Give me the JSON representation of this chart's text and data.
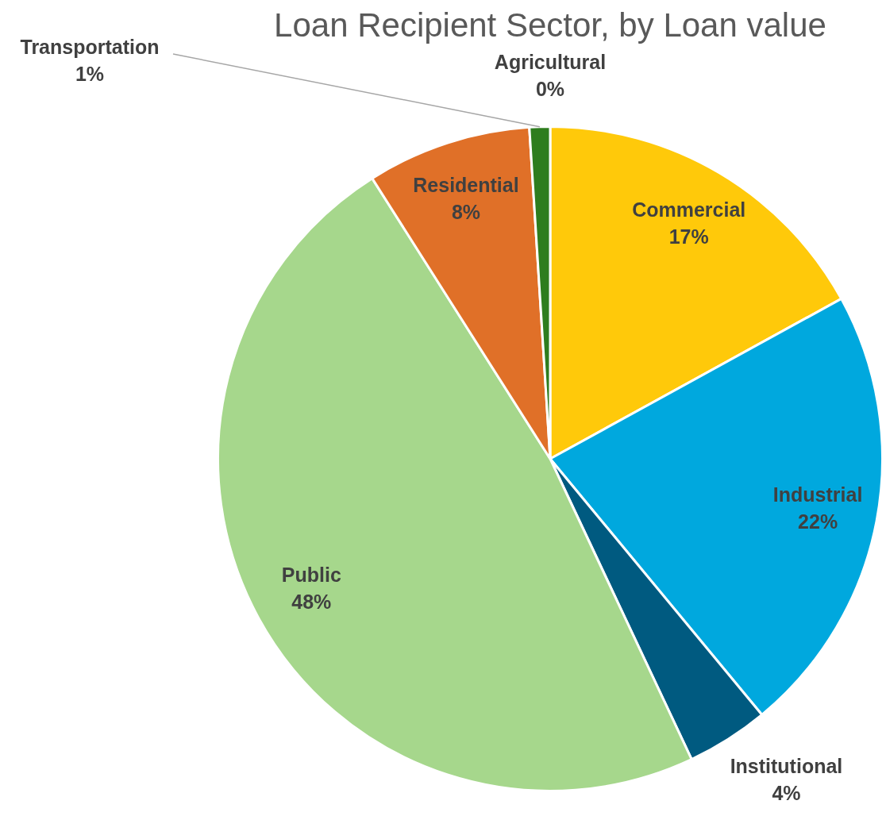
{
  "chart_data": {
    "type": "pie",
    "title": "Loan Recipient Sector, by Loan value",
    "categories": [
      "Agricultural",
      "Commercial",
      "Industrial",
      "Institutional",
      "Public",
      "Residential",
      "Transportation"
    ],
    "values": [
      0,
      17,
      22,
      4,
      48,
      8,
      1
    ],
    "value_labels": [
      "0%",
      "17%",
      "22%",
      "4%",
      "48%",
      "8%",
      "1%"
    ],
    "colors": [
      "#a9d18e",
      "#ffc90a",
      "#00a8de",
      "#005a80",
      "#a6d78c",
      "#e07028",
      "#2e7d1e"
    ],
    "legend": false
  }
}
